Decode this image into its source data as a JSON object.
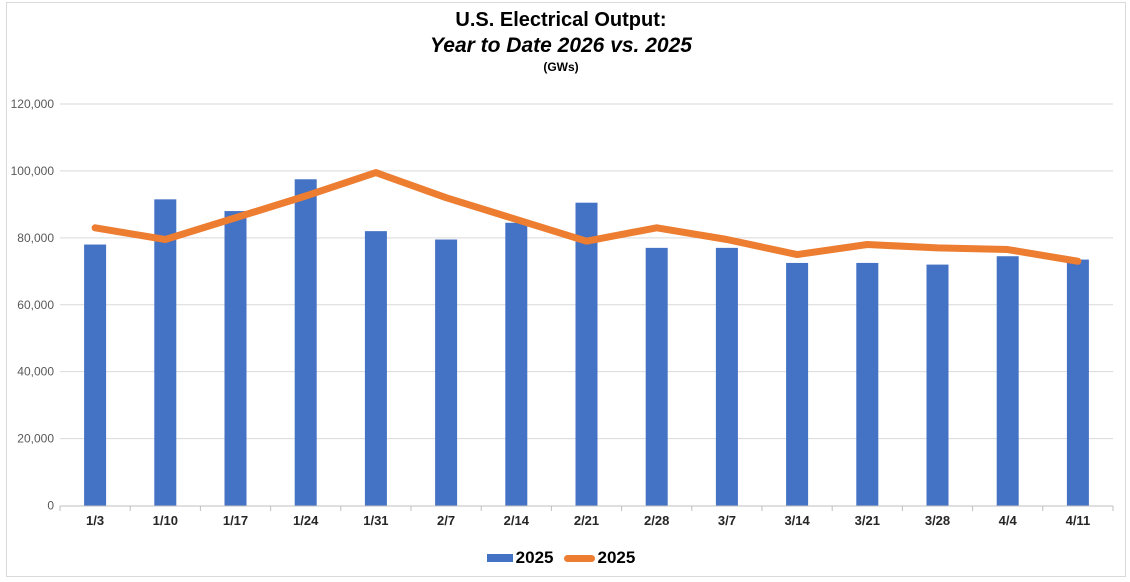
{
  "title": {
    "line1": "U.S. Electrical Output:",
    "line2": "Year to Date 2026 vs. 2025",
    "line3": "(GWs)"
  },
  "chart_data": {
    "type": "bar",
    "subtype": "combo-bar-line",
    "title": "U.S. Electrical Output: Year to Date 2026 vs. 2025 (GWs)",
    "xlabel": "",
    "ylabel": "",
    "categories": [
      "1/3",
      "1/10",
      "1/17",
      "1/24",
      "1/31",
      "2/7",
      "2/14",
      "2/21",
      "2/28",
      "3/7",
      "3/14",
      "3/21",
      "3/28",
      "4/4",
      "4/11"
    ],
    "series": [
      {
        "name": "2025",
        "type": "bar",
        "color": "#4472C4",
        "values": [
          78000,
          91500,
          88000,
          97500,
          82000,
          79500,
          84500,
          90500,
          77000,
          77000,
          72500,
          72500,
          72000,
          74500,
          73500
        ]
      },
      {
        "name": "2025",
        "type": "line",
        "color": "#ED7D31",
        "values": [
          83000,
          79500,
          86000,
          92500,
          99500,
          92000,
          85500,
          79000,
          83000,
          79500,
          75000,
          78000,
          77000,
          76500,
          73000
        ]
      }
    ],
    "ylim": [
      0,
      120000
    ],
    "ytick_step": 20000,
    "ytick_labels": [
      "0",
      "20,000",
      "40,000",
      "60,000",
      "80,000",
      "100,000",
      "120,000"
    ],
    "grid": "horizontal",
    "legend_position": "bottom"
  },
  "legend": [
    {
      "label": "2025",
      "marker": "bar",
      "color": "#4472C4"
    },
    {
      "label": "2025",
      "marker": "line",
      "color": "#ED7D31"
    }
  ],
  "colors": {
    "bar_series": "#4472C4",
    "line_series": "#ED7D31",
    "gridline": "#D9D9D9",
    "axis_line": "#BFBFBF",
    "y_tick_text": "#595959",
    "x_tick_text": "#262626",
    "frame_border": "#D9D9D9",
    "background": "#FFFFFF"
  }
}
